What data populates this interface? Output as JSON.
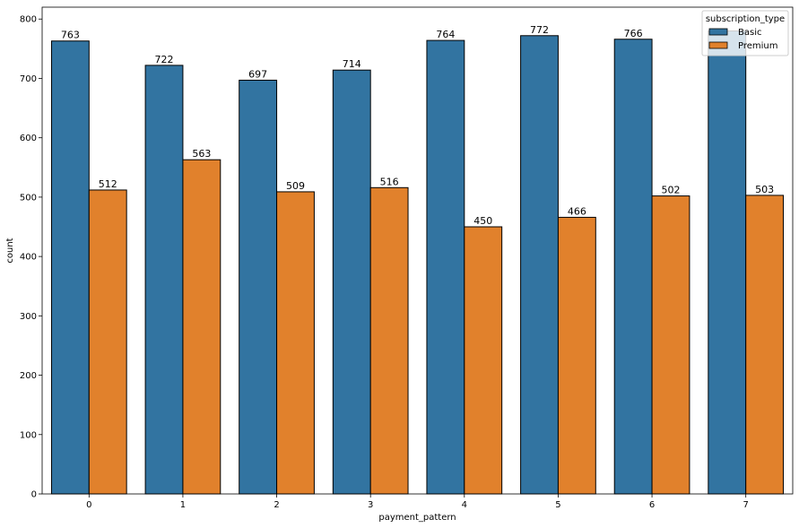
{
  "chart_data": {
    "type": "bar",
    "xlabel": "payment_pattern",
    "ylabel": "count",
    "categories": [
      "0",
      "1",
      "2",
      "3",
      "4",
      "5",
      "6",
      "7"
    ],
    "ylim": [
      0,
      820
    ],
    "yticks": [
      0,
      100,
      200,
      300,
      400,
      500,
      600,
      700,
      800
    ],
    "grid": false,
    "legend": {
      "title": "subscription_type",
      "placement": "top-right"
    },
    "series": [
      {
        "name": "Basic",
        "color": "#3274a1",
        "values": [
          763,
          722,
          697,
          714,
          764,
          772,
          766,
          780
        ]
      },
      {
        "name": "Premium",
        "color": "#e1812c",
        "values": [
          512,
          563,
          509,
          516,
          450,
          466,
          502,
          503
        ]
      }
    ],
    "data_labels": [
      [
        "763",
        "722",
        "697",
        "714",
        "764",
        "772",
        "766",
        ""
      ],
      [
        "512",
        "563",
        "509",
        "516",
        "450",
        "466",
        "502",
        "503"
      ]
    ]
  }
}
